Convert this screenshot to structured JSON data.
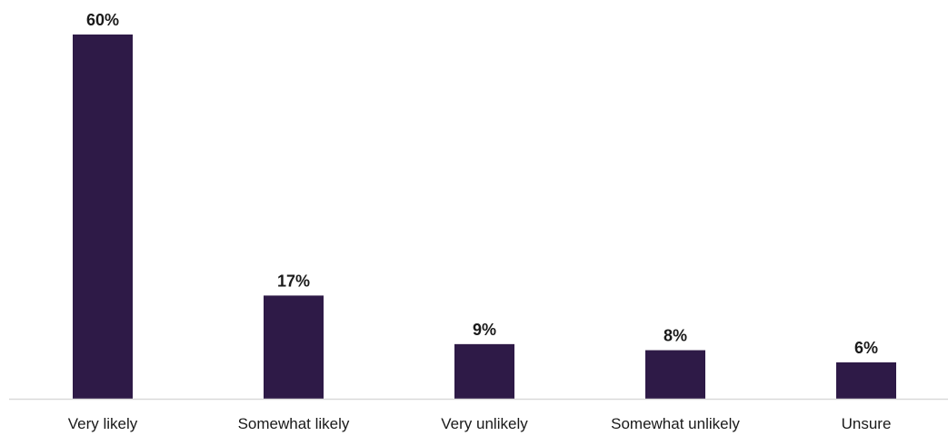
{
  "chart_data": {
    "type": "bar",
    "categories": [
      "Very likely",
      "Somewhat likely",
      "Very unlikely",
      "Somewhat unlikely",
      "Unsure"
    ],
    "values": [
      60,
      17,
      9,
      8,
      6
    ],
    "data_labels": [
      "60%",
      "17%",
      "9%",
      "8%",
      "6%"
    ],
    "title": "",
    "xlabel": "",
    "ylabel": "",
    "ylim": [
      0,
      60
    ],
    "grid": false,
    "legend": "none",
    "colors": {
      "bar": "#2e1a47",
      "axis": "#d9d9d9",
      "text": "#1a1a1a"
    }
  }
}
